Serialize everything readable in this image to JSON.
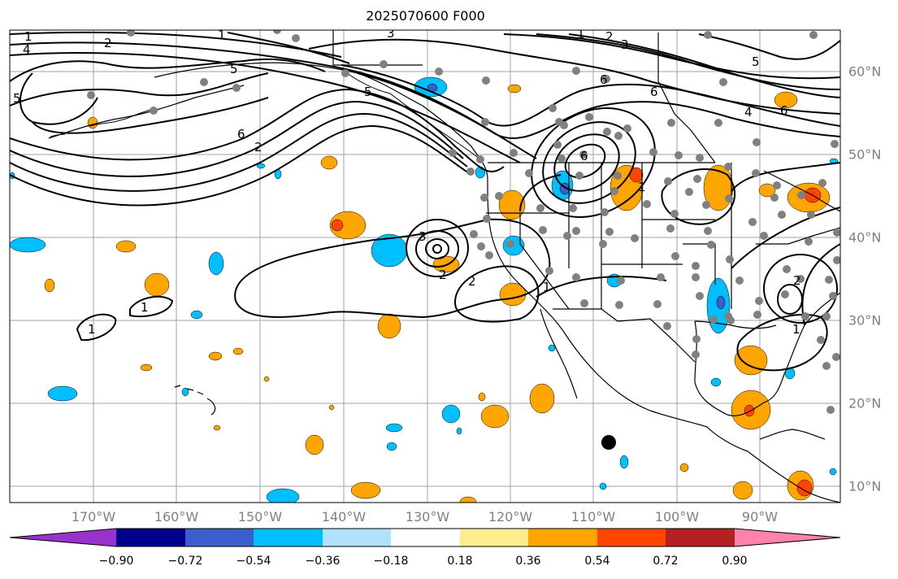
{
  "title": "2025070600 F000",
  "lon_labels": [
    "170°W",
    "160°W",
    "150°W",
    "140°W",
    "130°W",
    "120°W",
    "110°W",
    "100°W",
    "90°W"
  ],
  "lat_labels": [
    "60°N",
    "50°N",
    "40°N",
    "30°N",
    "20°N",
    "10°N"
  ],
  "colorbar": {
    "ticks": [
      "−0.90",
      "−0.72",
      "−0.54",
      "−0.36",
      "−0.18",
      "0.18",
      "0.36",
      "0.54",
      "0.72",
      "0.90"
    ],
    "colors": [
      "#9932cc",
      "#00008b",
      "#3a5fcd",
      "#00bfff",
      "#b0e2ff",
      "#ffffff",
      "#ffec8b",
      "#ffa500",
      "#ff4500",
      "#b22222",
      "#ff82ab"
    ]
  },
  "contour_labels": [
    "1",
    "2",
    "3",
    "4",
    "5",
    "6"
  ],
  "colors": {
    "land_line": "#000000",
    "grid": "#a0a0a0",
    "station": "#808080"
  }
}
